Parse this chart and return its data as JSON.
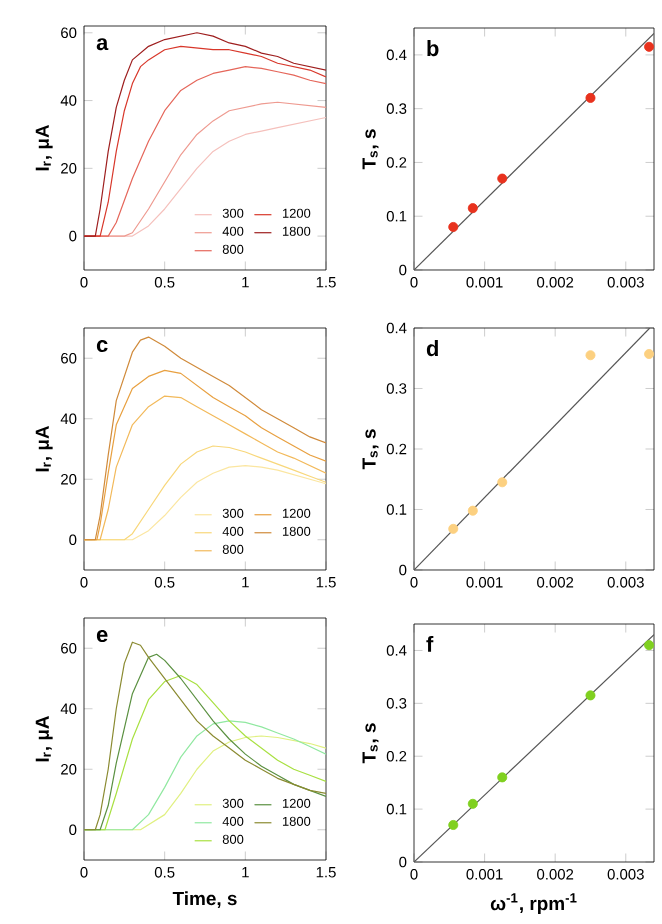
{
  "chart_data": [
    {
      "type": "line",
      "ylabel": "I$_{r}$, μA",
      "annotations": [
        "a"
      ],
      "xlim": [
        0,
        1.5
      ],
      "ylim": [
        -10,
        62
      ],
      "xticks": [
        0,
        0.5,
        1,
        1.5
      ],
      "yticks": [
        0,
        20,
        40,
        60
      ],
      "legend": "bottom right",
      "marker": "none",
      "line_style": "solid",
      "series": [
        {
          "name": "300",
          "color": "#f5c0bc",
          "x": [
            0,
            0.3,
            0.4,
            0.5,
            0.6,
            0.7,
            0.8,
            0.9,
            1.0,
            1.1,
            1.2,
            1.3,
            1.4,
            1.5
          ],
          "values": [
            0,
            0,
            3,
            8,
            14,
            20,
            25,
            28,
            30,
            31,
            32,
            33,
            34,
            35
          ]
        },
        {
          "name": "400",
          "color": "#ee9a90",
          "x": [
            0,
            0.25,
            0.3,
            0.4,
            0.5,
            0.6,
            0.7,
            0.8,
            0.9,
            1.0,
            1.1,
            1.2,
            1.3,
            1.4,
            1.5
          ],
          "values": [
            0,
            0,
            1,
            8,
            16,
            24,
            30,
            34,
            37,
            38,
            39,
            39.5,
            39,
            38.5,
            38
          ]
        },
        {
          "name": "800",
          "color": "#e5665a",
          "x": [
            0,
            0.15,
            0.2,
            0.3,
            0.4,
            0.5,
            0.6,
            0.7,
            0.8,
            0.9,
            1.0,
            1.1,
            1.2,
            1.3,
            1.4,
            1.5
          ],
          "values": [
            0,
            0,
            4,
            17,
            28,
            37,
            43,
            46,
            48,
            49,
            50,
            49.5,
            48.5,
            47.5,
            46,
            45
          ]
        },
        {
          "name": "1200",
          "color": "#d8372a",
          "x": [
            0,
            0.1,
            0.15,
            0.2,
            0.25,
            0.3,
            0.35,
            0.4,
            0.5,
            0.6,
            0.7,
            0.8,
            0.9,
            1.0,
            1.1,
            1.2,
            1.3,
            1.4,
            1.5
          ],
          "values": [
            0,
            0,
            10,
            25,
            37,
            45,
            50,
            52,
            55,
            56,
            55.5,
            55,
            55,
            54,
            53,
            51,
            50,
            49,
            47
          ]
        },
        {
          "name": "1800",
          "color": "#9e1e1e",
          "x": [
            0,
            0.07,
            0.1,
            0.15,
            0.2,
            0.25,
            0.3,
            0.4,
            0.5,
            0.6,
            0.7,
            0.8,
            0.9,
            1.0,
            1.1,
            1.2,
            1.3,
            1.4,
            1.5
          ],
          "values": [
            0,
            0,
            8,
            25,
            38,
            46,
            52,
            56,
            58,
            59,
            60,
            59,
            57,
            56,
            54,
            53,
            51,
            50,
            49
          ]
        }
      ]
    },
    {
      "type": "scatter",
      "ylabel": "T$_{s}$, s",
      "annotations": [
        "b"
      ],
      "xlim": [
        0,
        0.0034
      ],
      "ylim": [
        0,
        0.45
      ],
      "xticks": [
        0,
        0.001,
        0.002,
        0.003
      ],
      "yticks": [
        0,
        0.1,
        0.2,
        0.3,
        0.4
      ],
      "marker": "circle",
      "series": [
        {
          "type": "line",
          "marker": "none",
          "color": "#555555",
          "x": [
            0,
            0.0034
          ],
          "values": [
            0,
            0.44
          ]
        },
        {
          "color": "#e8321e",
          "x": [
            0.000556,
            0.000833,
            0.00125,
            0.0025,
            0.00333
          ],
          "values": [
            0.08,
            0.115,
            0.17,
            0.32,
            0.415
          ]
        }
      ]
    },
    {
      "type": "line",
      "ylabel": "I$_{r}$, μA",
      "annotations": [
        "c"
      ],
      "xlim": [
        0,
        1.5
      ],
      "ylim": [
        -10,
        70
      ],
      "xticks": [
        0,
        0.5,
        1,
        1.5
      ],
      "yticks": [
        0,
        20,
        40,
        60
      ],
      "legend": "bottom right",
      "marker": "none",
      "line_style": "solid",
      "series": [
        {
          "name": "300",
          "color": "#fbe6a0",
          "x": [
            0,
            0.3,
            0.4,
            0.5,
            0.6,
            0.7,
            0.8,
            0.9,
            1.0,
            1.1,
            1.2,
            1.3,
            1.4,
            1.5
          ],
          "values": [
            0,
            0,
            3,
            8,
            14,
            19,
            22,
            24,
            24.5,
            24,
            23,
            21.5,
            20,
            18.5
          ]
        },
        {
          "name": "400",
          "color": "#f8d77a",
          "x": [
            0,
            0.25,
            0.3,
            0.4,
            0.5,
            0.6,
            0.7,
            0.8,
            0.9,
            1.0,
            1.1,
            1.2,
            1.3,
            1.4,
            1.5
          ],
          "values": [
            0,
            0,
            2,
            10,
            18,
            25,
            29,
            31,
            30.5,
            29,
            27,
            25,
            23,
            21,
            19
          ]
        },
        {
          "name": "800",
          "color": "#f2b95a",
          "x": [
            0,
            0.1,
            0.15,
            0.2,
            0.3,
            0.4,
            0.5,
            0.6,
            0.7,
            0.8,
            0.9,
            1.0,
            1.1,
            1.2,
            1.3,
            1.4,
            1.5
          ],
          "values": [
            0,
            0,
            10,
            24,
            38,
            44,
            47.5,
            47,
            44,
            41,
            38,
            35,
            32,
            29,
            27,
            24.5,
            22
          ]
        },
        {
          "name": "1200",
          "color": "#e8a040",
          "x": [
            0,
            0.08,
            0.1,
            0.15,
            0.2,
            0.3,
            0.4,
            0.5,
            0.6,
            0.7,
            0.8,
            0.9,
            1.0,
            1.1,
            1.2,
            1.3,
            1.4,
            1.5
          ],
          "values": [
            0,
            0,
            5,
            22,
            38,
            50,
            54,
            56,
            55,
            51,
            47,
            44,
            41,
            37,
            34,
            31,
            28,
            26
          ]
        },
        {
          "name": "1800",
          "color": "#d08a3a",
          "x": [
            0,
            0.07,
            0.1,
            0.15,
            0.2,
            0.3,
            0.35,
            0.4,
            0.5,
            0.6,
            0.7,
            0.8,
            0.9,
            1.0,
            1.1,
            1.2,
            1.3,
            1.4,
            1.5
          ],
          "values": [
            0,
            0,
            8,
            28,
            46,
            62,
            66,
            67,
            64,
            60,
            57,
            54,
            51,
            47,
            43,
            40,
            37,
            34,
            32
          ]
        }
      ]
    },
    {
      "type": "scatter",
      "ylabel": "T$_{s}$, s",
      "annotations": [
        "d"
      ],
      "xlim": [
        0,
        0.0034
      ],
      "ylim": [
        0,
        0.4
      ],
      "xticks": [
        0,
        0.001,
        0.002,
        0.003
      ],
      "yticks": [
        0,
        0.1,
        0.2,
        0.3,
        0.4
      ],
      "marker": "circle",
      "series": [
        {
          "type": "line",
          "marker": "none",
          "color": "#555555",
          "x": [
            0,
            0.00334
          ],
          "values": [
            0,
            0.4
          ]
        },
        {
          "color": "#fcd080",
          "x": [
            0.000556,
            0.000833,
            0.00125,
            0.0025,
            0.00333
          ],
          "values": [
            0.068,
            0.098,
            0.145,
            0.355,
            0.357
          ]
        }
      ]
    },
    {
      "type": "line",
      "xlabel": "Time, s",
      "ylabel": "I$_{r}$, μA",
      "annotations": [
        "e"
      ],
      "xlim": [
        0,
        1.5
      ],
      "ylim": [
        -10,
        70
      ],
      "xticks": [
        0,
        0.5,
        1,
        1.5
      ],
      "yticks": [
        0,
        20,
        40,
        60
      ],
      "legend": "bottom right",
      "marker": "none",
      "line_style": "solid",
      "series": [
        {
          "name": "300",
          "color": "#e0f080",
          "x": [
            0,
            0.35,
            0.5,
            0.6,
            0.7,
            0.8,
            0.9,
            1.0,
            1.1,
            1.2,
            1.3,
            1.4,
            1.5
          ],
          "values": [
            0,
            0,
            5,
            12,
            20,
            26,
            29,
            30.5,
            31,
            30.5,
            29.5,
            28.5,
            27
          ]
        },
        {
          "name": "400",
          "color": "#90e8a0",
          "x": [
            0,
            0.3,
            0.4,
            0.5,
            0.6,
            0.7,
            0.8,
            0.9,
            1.0,
            1.1,
            1.2,
            1.3,
            1.4,
            1.5
          ],
          "values": [
            0,
            0,
            5,
            14,
            24,
            31,
            35,
            36,
            35.5,
            34,
            32,
            30,
            27.5,
            25
          ]
        },
        {
          "name": "800",
          "color": "#a8e040",
          "x": [
            0,
            0.13,
            0.2,
            0.3,
            0.4,
            0.5,
            0.6,
            0.7,
            0.8,
            0.9,
            1.0,
            1.1,
            1.2,
            1.3,
            1.4,
            1.5
          ],
          "values": [
            0,
            0,
            12,
            30,
            43,
            49,
            51,
            48,
            42,
            36,
            31,
            27,
            23,
            20,
            18,
            16
          ]
        },
        {
          "name": "1200",
          "color": "#5a9040",
          "x": [
            0,
            0.1,
            0.15,
            0.2,
            0.3,
            0.4,
            0.45,
            0.5,
            0.6,
            0.7,
            0.8,
            0.9,
            1.0,
            1.1,
            1.2,
            1.3,
            1.4,
            1.5
          ],
          "values": [
            0,
            0,
            8,
            22,
            45,
            57,
            58,
            56,
            50,
            43,
            36,
            30,
            25,
            21,
            18,
            15,
            13,
            11
          ]
        },
        {
          "name": "1800",
          "color": "#8a8a30",
          "x": [
            0,
            0.07,
            0.1,
            0.15,
            0.2,
            0.25,
            0.3,
            0.35,
            0.4,
            0.5,
            0.6,
            0.7,
            0.8,
            0.9,
            1.0,
            1.1,
            1.2,
            1.3,
            1.4,
            1.5
          ],
          "values": [
            0,
            0,
            5,
            20,
            40,
            55,
            62,
            61,
            57,
            50,
            43,
            36,
            31,
            27,
            23,
            20,
            17,
            15,
            13,
            12
          ]
        }
      ]
    },
    {
      "type": "scatter",
      "xlabel": "ω$^{-1}$, rpm$^{-1}$",
      "ylabel": "T$_{s}$, s",
      "annotations": [
        "f"
      ],
      "xlim": [
        0,
        0.0034
      ],
      "ylim": [
        0,
        0.45
      ],
      "xticks": [
        0,
        0.001,
        0.002,
        0.003
      ],
      "yticks": [
        0,
        0.1,
        0.2,
        0.3,
        0.4
      ],
      "marker": "circle",
      "series": [
        {
          "type": "line",
          "marker": "none",
          "color": "#555555",
          "x": [
            0,
            0.0034
          ],
          "values": [
            0,
            0.43
          ]
        },
        {
          "color": "#80d020",
          "x": [
            0.000556,
            0.000833,
            0.00125,
            0.0025,
            0.00333
          ],
          "values": [
            0.07,
            0.11,
            0.16,
            0.315,
            0.41
          ]
        }
      ]
    }
  ]
}
